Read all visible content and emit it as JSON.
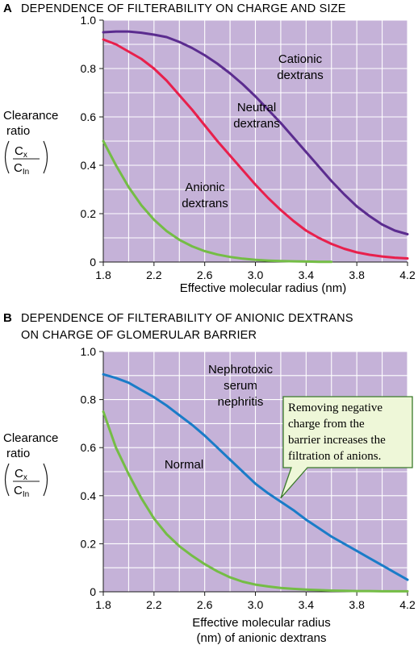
{
  "figure": {
    "colors": {
      "plot_background": "#c5b2d8",
      "grid": "#ffffff",
      "cationic": "#5b2c8f",
      "neutral": "#e8204c",
      "anionic": "#74bd45",
      "nephritis": "#1a7cc8",
      "callout_fill": "#eef7d8",
      "callout_border": "#3a7a2a"
    },
    "ylabel": {
      "line1": "Clearance",
      "line2": "ratio",
      "num": "C",
      "num_sub": "x",
      "den": "C",
      "den_sub": "In"
    }
  },
  "chart_data": [
    {
      "type": "line",
      "panel": "A",
      "title": "DEPENDENCE OF FILTERABILITY ON CHARGE AND SIZE",
      "xlabel": "Effective molecular radius (nm)",
      "xlabel2": "",
      "ylabel": "Clearance ratio (Cx/CIn)",
      "xlim": [
        1.8,
        4.2
      ],
      "ylim": [
        0,
        1.0
      ],
      "xticks": [
        "1.8",
        "2.2",
        "2.6",
        "3.0",
        "3.4",
        "3.8",
        "4.2"
      ],
      "yticks": [
        "0",
        "0.2",
        "0.4",
        "0.6",
        "0.8",
        "1.0"
      ],
      "series": [
        {
          "name": "Cationic dextrans",
          "label_line1": "Cationic",
          "label_line2": "dextrans",
          "color_key": "cationic",
          "x": [
            1.8,
            1.9,
            2.0,
            2.1,
            2.2,
            2.3,
            2.4,
            2.5,
            2.6,
            2.7,
            2.8,
            2.9,
            3.0,
            3.1,
            3.2,
            3.3,
            3.4,
            3.5,
            3.6,
            3.7,
            3.8,
            3.9,
            4.0,
            4.1,
            4.2
          ],
          "y": [
            0.95,
            0.953,
            0.953,
            0.948,
            0.94,
            0.93,
            0.91,
            0.885,
            0.855,
            0.82,
            0.78,
            0.735,
            0.685,
            0.63,
            0.575,
            0.515,
            0.455,
            0.395,
            0.335,
            0.28,
            0.23,
            0.19,
            0.155,
            0.13,
            0.115
          ]
        },
        {
          "name": "Neutral dextrans",
          "label_line1": "Neutral",
          "label_line2": "dextrans",
          "color_key": "neutral",
          "x": [
            1.8,
            1.9,
            2.0,
            2.1,
            2.2,
            2.3,
            2.4,
            2.5,
            2.6,
            2.7,
            2.8,
            2.9,
            3.0,
            3.1,
            3.2,
            3.3,
            3.4,
            3.5,
            3.6,
            3.7,
            3.8,
            3.9,
            4.0,
            4.1,
            4.2
          ],
          "y": [
            0.92,
            0.9,
            0.87,
            0.84,
            0.8,
            0.75,
            0.69,
            0.63,
            0.565,
            0.5,
            0.44,
            0.38,
            0.32,
            0.265,
            0.215,
            0.17,
            0.13,
            0.1,
            0.075,
            0.055,
            0.04,
            0.03,
            0.023,
            0.018,
            0.015
          ]
        },
        {
          "name": "Anionic dextrans",
          "label_line1": "Anionic",
          "label_line2": "dextrans",
          "color_key": "anionic",
          "x": [
            1.8,
            1.9,
            2.0,
            2.1,
            2.2,
            2.3,
            2.4,
            2.5,
            2.6,
            2.7,
            2.8,
            2.9,
            3.0,
            3.1,
            3.2,
            3.3,
            3.4,
            3.5,
            3.6
          ],
          "y": [
            0.5,
            0.4,
            0.31,
            0.235,
            0.175,
            0.128,
            0.092,
            0.065,
            0.045,
            0.031,
            0.021,
            0.014,
            0.009,
            0.006,
            0.004,
            0.003,
            0.002,
            0.001,
            0.001
          ]
        }
      ]
    },
    {
      "type": "line",
      "panel": "B",
      "title": "DEPENDENCE OF FILTERABILITY OF ANIONIC DEXTRANS",
      "title2": "ON CHARGE OF GLOMERULAR BARRIER",
      "xlabel": "Effective molecular radius",
      "xlabel2": "(nm) of anionic dextrans",
      "ylabel": "Clearance ratio (Cx/CIn)",
      "xlim": [
        1.8,
        4.2
      ],
      "ylim": [
        0,
        1.0
      ],
      "xticks": [
        "1.8",
        "2.2",
        "2.6",
        "3.0",
        "3.4",
        "3.8",
        "4.2"
      ],
      "yticks": [
        "0",
        "0.2",
        "0.4",
        "0.6",
        "0.8",
        "1.0"
      ],
      "series": [
        {
          "name": "Nephrotoxic serum nephritis",
          "label_line1": "Nephrotoxic",
          "label_line2": "serum",
          "label_line3": "nephritis",
          "color_key": "nephritis",
          "x": [
            1.8,
            1.9,
            2.0,
            2.1,
            2.2,
            2.3,
            2.4,
            2.5,
            2.6,
            2.7,
            2.8,
            2.9,
            3.0,
            3.1,
            3.2,
            3.3,
            3.4,
            3.5,
            3.6,
            3.7,
            3.8,
            3.9,
            4.0,
            4.1,
            4.2
          ],
          "y": [
            0.905,
            0.89,
            0.87,
            0.84,
            0.81,
            0.775,
            0.735,
            0.695,
            0.65,
            0.6,
            0.55,
            0.5,
            0.45,
            0.41,
            0.375,
            0.34,
            0.3,
            0.265,
            0.23,
            0.2,
            0.17,
            0.14,
            0.11,
            0.08,
            0.05
          ]
        },
        {
          "name": "Normal",
          "label_line1": "Normal",
          "color_key": "anionic",
          "x": [
            1.8,
            1.9,
            2.0,
            2.1,
            2.2,
            2.3,
            2.4,
            2.5,
            2.6,
            2.7,
            2.8,
            2.9,
            3.0,
            3.1,
            3.2,
            3.3,
            3.4,
            3.5,
            3.6,
            3.7,
            3.8,
            3.9,
            4.0,
            4.1,
            4.2
          ],
          "y": [
            0.75,
            0.6,
            0.49,
            0.39,
            0.305,
            0.24,
            0.19,
            0.15,
            0.115,
            0.085,
            0.06,
            0.042,
            0.03,
            0.022,
            0.016,
            0.012,
            0.009,
            0.007,
            0.005,
            0.004,
            0.003,
            0.003,
            0.002,
            0.002,
            0.002
          ]
        }
      ],
      "annotation": {
        "lines": [
          "Removing negative",
          "charge from the",
          "barrier increases the",
          "filtration  of anions."
        ],
        "points_to_x": 3.2,
        "points_to_y": 0.39
      }
    }
  ]
}
